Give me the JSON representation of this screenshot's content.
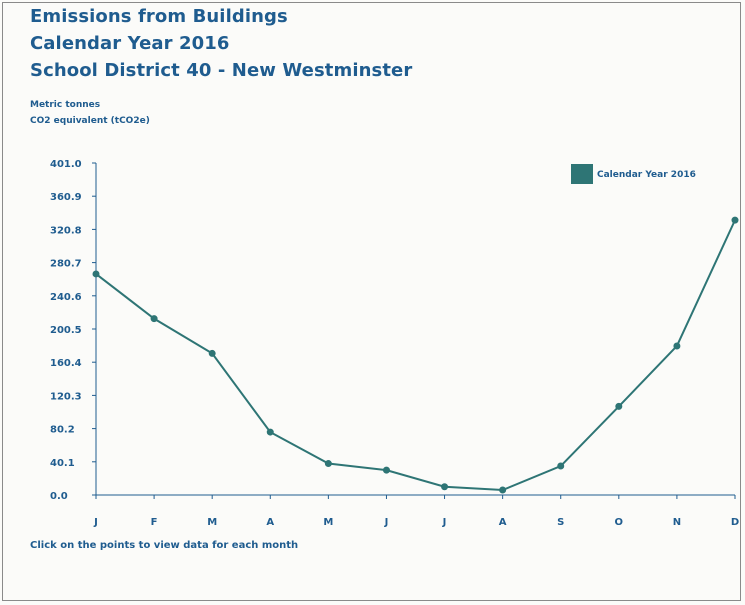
{
  "header": {
    "title_line1": "Emissions from Buildings",
    "title_line2": "Calendar Year 2016",
    "title_line3": "School District 40 - New Westminster"
  },
  "units": {
    "line1": "Metric tonnes",
    "line2": "CO2 equivalent (tCO2e)"
  },
  "footnote": "Click on the points to view data for each month",
  "colors": {
    "series": "#2e7575",
    "axis": "#1f5c8f",
    "text": "#1f5c8f"
  },
  "chart_data": {
    "type": "line",
    "title": "Emissions from Buildings",
    "subtitle": "Calendar Year 2016",
    "ylabel": "Metric tonnes CO2 equivalent (tCO2e)",
    "xlabel": "",
    "ylim": [
      0,
      401
    ],
    "yticks": [
      "0.0",
      "40.1",
      "80.2",
      "120.3",
      "160.4",
      "200.5",
      "240.6",
      "280.7",
      "320.8",
      "360.9",
      "401.0"
    ],
    "categories": [
      "J",
      "F",
      "M",
      "A",
      "M",
      "J",
      "J",
      "A",
      "S",
      "O",
      "N",
      "D"
    ],
    "series": [
      {
        "name": "Calendar Year 2016",
        "values": [
          267,
          213,
          171,
          76,
          38,
          30,
          10,
          6,
          35,
          107,
          180,
          332
        ]
      }
    ],
    "legend": "top-right",
    "grid": false
  }
}
